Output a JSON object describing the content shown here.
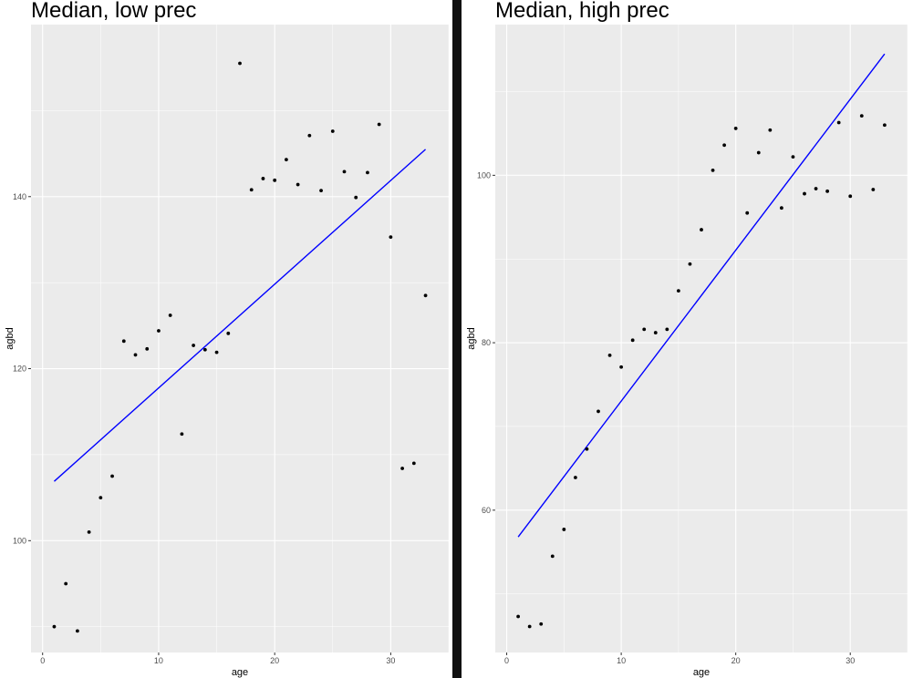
{
  "chart_data": [
    {
      "type": "scatter",
      "title": "Median, low prec",
      "xlabel": "age",
      "ylabel": "agbd",
      "xlim": [
        -1,
        35
      ],
      "ylim": [
        87,
        160
      ],
      "x_ticks": [
        0,
        10,
        20,
        30
      ],
      "y_ticks": [
        100,
        120,
        140
      ],
      "grid": true,
      "points": {
        "x": [
          1,
          2,
          3,
          4,
          5,
          6,
          7,
          8,
          9,
          10,
          11,
          12,
          13,
          14,
          15,
          16,
          17,
          18,
          19,
          20,
          21,
          22,
          23,
          24,
          25,
          26,
          27,
          28,
          29,
          30,
          31,
          32,
          33
        ],
        "y": [
          90.0,
          95.0,
          89.5,
          101.0,
          105.0,
          107.5,
          123.2,
          121.6,
          122.3,
          124.4,
          126.2,
          112.4,
          122.7,
          122.2,
          121.9,
          124.1,
          155.5,
          140.8,
          142.1,
          141.9,
          144.3,
          141.4,
          147.1,
          140.7,
          147.6,
          142.9,
          139.9,
          142.8,
          148.4,
          135.3,
          108.4,
          109.0,
          128.5
        ]
      },
      "line": {
        "x": [
          1,
          33
        ],
        "y": [
          106.9,
          145.5
        ],
        "color": "#0000ff"
      },
      "colors": {
        "panel": "#ebebeb",
        "grid": "#ffffff",
        "points": "#000000",
        "text": "#4d4d4d"
      }
    },
    {
      "type": "scatter",
      "title": "Median, high prec",
      "xlabel": "age",
      "ylabel": "agbd",
      "xlim": [
        -1,
        35
      ],
      "ylim": [
        43,
        118
      ],
      "x_ticks": [
        0,
        10,
        20,
        30
      ],
      "y_ticks": [
        60,
        80,
        100
      ],
      "grid": true,
      "points": {
        "x": [
          1,
          2,
          3,
          4,
          5,
          6,
          7,
          8,
          9,
          10,
          11,
          12,
          13,
          14,
          15,
          16,
          17,
          18,
          19,
          20,
          21,
          22,
          23,
          24,
          25,
          26,
          27,
          28,
          29,
          30,
          31,
          32,
          33
        ],
        "y": [
          47.3,
          46.1,
          46.4,
          54.5,
          57.7,
          63.9,
          67.3,
          71.8,
          78.5,
          77.1,
          80.3,
          81.6,
          81.2,
          81.6,
          86.2,
          89.4,
          93.5,
          100.6,
          103.6,
          105.6,
          95.5,
          102.7,
          105.4,
          96.1,
          102.2,
          97.8,
          98.4,
          98.1,
          106.3,
          97.5,
          107.1,
          98.3,
          106.0
        ]
      },
      "line": {
        "x": [
          1,
          33
        ],
        "y": [
          56.8,
          114.5
        ],
        "color": "#0000ff"
      },
      "colors": {
        "panel": "#ebebeb",
        "grid": "#ffffff",
        "points": "#000000",
        "text": "#4d4d4d"
      }
    }
  ]
}
